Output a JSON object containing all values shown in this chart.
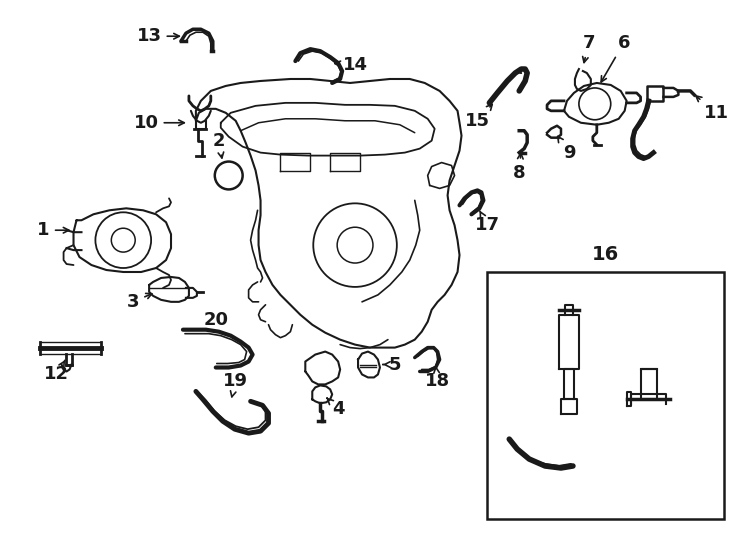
{
  "bg_color": "#ffffff",
  "line_color": "#1a1a1a",
  "fig_width": 7.34,
  "fig_height": 5.4,
  "dpi": 100,
  "font_size": 13,
  "lw": 1.4
}
